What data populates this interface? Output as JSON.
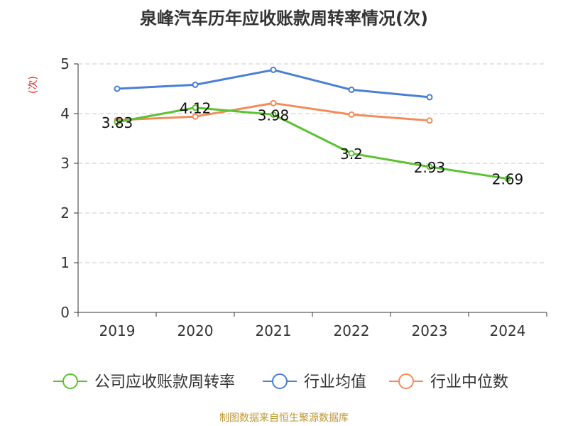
{
  "chart_data": {
    "type": "line",
    "title": "泉峰汽车历年应收账款周转率情况(次)",
    "ylabel": "(次)",
    "xlabel": "",
    "categories": [
      "2019",
      "2020",
      "2021",
      "2022",
      "2023",
      "2024"
    ],
    "ylim": [
      0,
      5
    ],
    "yticks": [
      "0",
      "1",
      "2",
      "3",
      "4",
      "5"
    ],
    "grid": true,
    "legend_position": "bottom",
    "series": [
      {
        "name": "公司应收账款周转率",
        "color": "#5cc232",
        "values": [
          3.83,
          4.12,
          3.98,
          3.2,
          2.93,
          2.69
        ],
        "labels": [
          "3.83",
          "4.12",
          "3.98",
          "3.2",
          "2.93",
          "2.69"
        ]
      },
      {
        "name": "行业均值",
        "color": "#4a7fd4",
        "values": [
          4.5,
          4.58,
          4.88,
          4.48,
          4.33,
          null
        ]
      },
      {
        "name": "行业中位数",
        "color": "#f28c5a",
        "values": [
          3.87,
          3.94,
          4.21,
          3.98,
          3.86,
          null
        ]
      }
    ]
  },
  "source": "制图数据来自恒生聚源数据库"
}
